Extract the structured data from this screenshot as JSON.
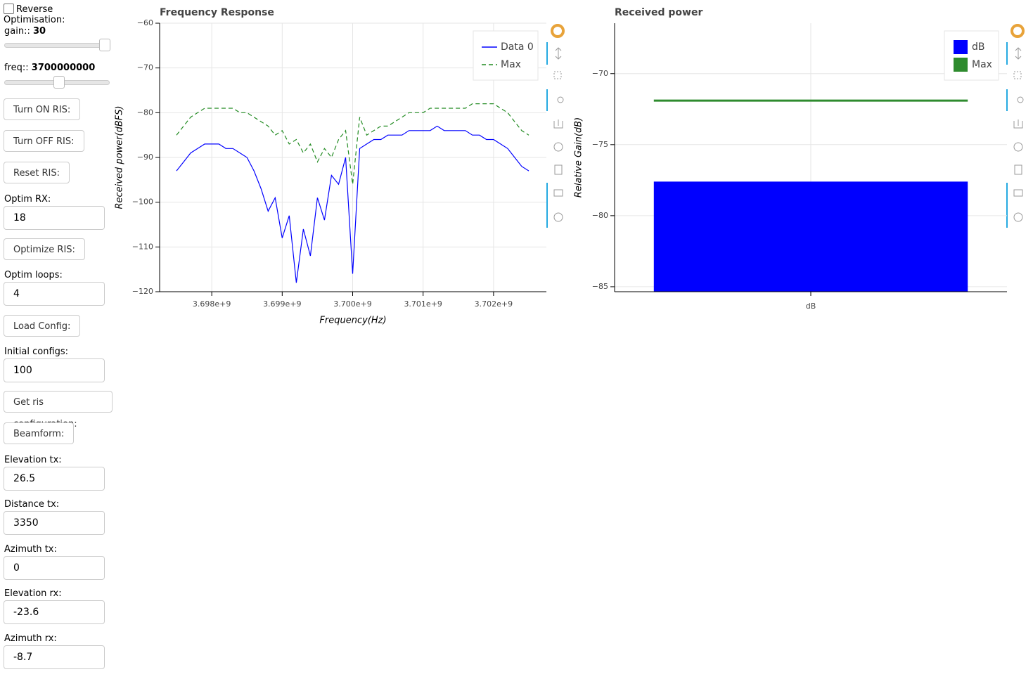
{
  "controls": {
    "reverse": "Reverse Optimisation:",
    "gain_label": "gain::",
    "gain_value": 30,
    "freq_label": "freq::",
    "freq_value": 3700000000,
    "turn_on": "Turn ON RIS:",
    "turn_off": "Turn OFF RIS:",
    "reset": "Reset RIS:",
    "optim_rx_label": "Optim RX:",
    "optim_rx": "18",
    "optimize": "Optimize RIS:",
    "optim_loops_label": "Optim loops:",
    "optim_loops": "4",
    "load_config": "Load Config:",
    "initial_configs_label": "Initial configs:",
    "initial_configs": "100",
    "get_config": "Get ris configuration:",
    "beamform": "Beamform:",
    "elevation_tx_label": "Elevation tx:",
    "elevation_tx": "26.5",
    "distance_tx_label": "Distance tx:",
    "distance_tx": "3350",
    "azimuth_tx_label": "Azimuth tx:",
    "azimuth_tx": "0",
    "elevation_rx_label": "Elevation rx:",
    "elevation_rx": "-23.6",
    "azimuth_rx_label": "Azimuth rx:",
    "azimuth_rx": "-8.7"
  },
  "chart_data": [
    {
      "type": "line",
      "title": "Frequency Response",
      "xlabel": "Frequency(Hz)",
      "ylabel": "Received power(dBFS)",
      "x": [
        3697500000,
        3697600000,
        3697700000,
        3697800000,
        3697900000,
        3698000000,
        3698100000,
        3698200000,
        3698300000,
        3698400000,
        3698500000,
        3698600000,
        3698700000,
        3698800000,
        3698900000,
        3699000000,
        3699100000,
        3699200000,
        3699300000,
        3699400000,
        3699500000,
        3699600000,
        3699700000,
        3699800000,
        3699900000,
        3700000000,
        3700100000,
        3700200000,
        3700300000,
        3700400000,
        3700500000,
        3700600000,
        3700700000,
        3700800000,
        3700900000,
        3701000000,
        3701100000,
        3701200000,
        3701300000,
        3701400000,
        3701500000,
        3701600000,
        3701700000,
        3701800000,
        3701900000,
        3702000000,
        3702100000,
        3702200000,
        3702300000,
        3702400000,
        3702500000
      ],
      "series": [
        {
          "name": "Data 0",
          "color": "#0000ff",
          "line_dash": "solid",
          "values": [
            -93,
            -91,
            -89,
            -88,
            -87,
            -87,
            -87,
            -88,
            -88,
            -89,
            -90,
            -93,
            -97,
            -102,
            -99,
            -108,
            -103,
            -118,
            -106,
            -112,
            -99,
            -104,
            -94,
            -96,
            -90,
            -116,
            -88,
            -87,
            -86,
            -86,
            -85,
            -85,
            -85,
            -84,
            -84,
            -84,
            -84,
            -83,
            -84,
            -84,
            -84,
            -84,
            -85,
            -85,
            -86,
            -86,
            -87,
            -88,
            -90,
            -92,
            -93
          ]
        },
        {
          "name": "Max",
          "color": "#228b22",
          "line_dash": "dashed",
          "values": [
            -85,
            -83,
            -81,
            -80,
            -79,
            -79,
            -79,
            -79,
            -79,
            -80,
            -80,
            -81,
            -82,
            -83,
            -85,
            -84,
            -87,
            -86,
            -89,
            -87,
            -91,
            -88,
            -90,
            -86,
            -84,
            -96,
            -81,
            -85,
            -84,
            -83,
            -83,
            -82,
            -81,
            -80,
            -80,
            -80,
            -79,
            -79,
            -79,
            -79,
            -79,
            -79,
            -78,
            -78,
            -78,
            -78,
            -79,
            -80,
            -82,
            -84,
            -85
          ]
        }
      ],
      "xlim": [
        3697260000,
        3702750000
      ],
      "xticks": [
        {
          "value": 3698000000,
          "label": "3.698e+9"
        },
        {
          "value": 3699000000,
          "label": "3.699e+9"
        },
        {
          "value": 3700000000,
          "label": "3.700e+9"
        },
        {
          "value": 3701000000,
          "label": "3.701e+9"
        },
        {
          "value": 3702000000,
          "label": "3.702e+9"
        }
      ],
      "ylim": [
        -120,
        -60
      ],
      "yticks": [
        {
          "value": -120,
          "label": "−120"
        },
        {
          "value": -110,
          "label": "−110"
        },
        {
          "value": -100,
          "label": "−100"
        },
        {
          "value": -90,
          "label": "−90"
        },
        {
          "value": -80,
          "label": "−80"
        },
        {
          "value": -70,
          "label": "−70"
        },
        {
          "value": -60,
          "label": "−60"
        }
      ],
      "grid": true,
      "legend": "top-right"
    },
    {
      "type": "bar",
      "title": "Received power",
      "ylabel": "Relative Gain(dB)",
      "categories": [
        "dB"
      ],
      "series": [
        {
          "name": "dB",
          "color": "#0000ff",
          "values": [
            -77.6
          ]
        },
        {
          "name": "Max",
          "color": "#2e8b2e",
          "mark": "line",
          "values": [
            -71.9
          ]
        }
      ],
      "ylim": [
        -85.35,
        -66.45
      ],
      "yticks": [
        {
          "value": -85,
          "label": "−85"
        },
        {
          "value": -80,
          "label": "−80"
        },
        {
          "value": -75,
          "label": "−75"
        },
        {
          "value": -70,
          "label": "−70"
        }
      ],
      "grid": true,
      "legend": "top-right"
    }
  ]
}
